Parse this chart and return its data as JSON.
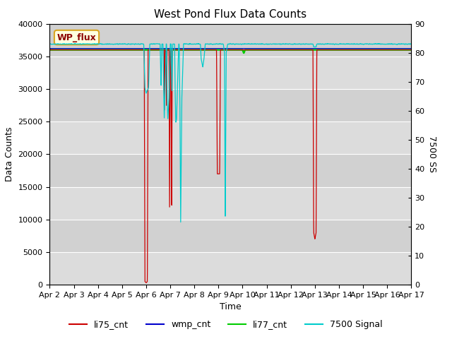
{
  "title": "West Pond Flux Data Counts",
  "xlabel": "Time",
  "ylabel_left": "Data Counts",
  "ylabel_right": "7500 SS",
  "legend_label": "WP_flux",
  "ylim_left": [
    0,
    40000
  ],
  "ylim_right": [
    0,
    90
  ],
  "x_tick_labels": [
    "Apr 2",
    "Apr 3",
    "Apr 4",
    "Apr 5",
    "Apr 6",
    "Apr 7",
    "Apr 8",
    "Apr 9",
    "Apr 10",
    "Apr 11",
    "Apr 12",
    "Apr 13",
    "Apr 14",
    "Apr 15",
    "Apr 16",
    "Apr 17"
  ],
  "bg_color": "#dcdcdc",
  "li75_color": "#cc0000",
  "wmp_color": "#0000cc",
  "li77_color": "#00cc00",
  "signal7500_color": "#00cccc",
  "title_fontsize": 11,
  "axis_label_fontsize": 9,
  "tick_fontsize": 8,
  "legend_fontsize": 9
}
